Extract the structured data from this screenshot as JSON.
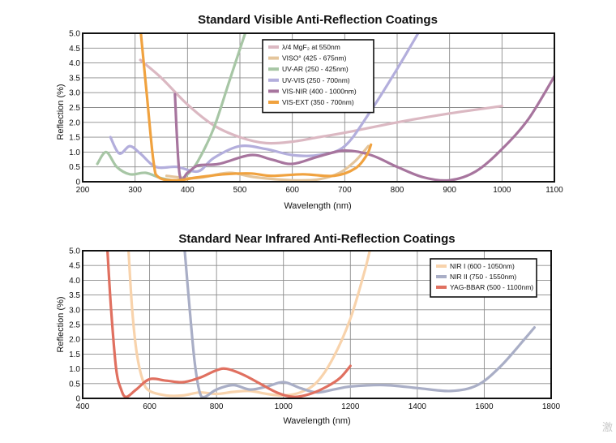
{
  "watermark": "激",
  "chart_data": [
    {
      "type": "line",
      "title": "Standard Visible Anti-Reflection Coatings",
      "xlabel": "Wavelength (nm)",
      "ylabel": "Reflection (%)",
      "xlim": [
        200,
        1100
      ],
      "ylim": [
        0,
        5.0
      ],
      "xticks": [
        200,
        300,
        400,
        500,
        600,
        700,
        800,
        900,
        1000,
        1100
      ],
      "yticks": [
        "0",
        "0.5",
        "1.0",
        "1.5",
        "2.0",
        "2.5",
        "3.0",
        "3.5",
        "4.0",
        "4.5",
        "5.0"
      ],
      "grid": true,
      "legend_position": "top-center",
      "series": [
        {
          "name": "λ/4 MgF₂ at 550nm",
          "color": "#dbb8c2",
          "points": [
            [
              310,
              4.1
            ],
            [
              350,
              3.5
            ],
            [
              400,
              2.6
            ],
            [
              450,
              1.9
            ],
            [
              500,
              1.5
            ],
            [
              550,
              1.3
            ],
            [
              600,
              1.35
            ],
            [
              650,
              1.5
            ],
            [
              700,
              1.65
            ],
            [
              800,
              2.0
            ],
            [
              900,
              2.3
            ],
            [
              1000,
              2.55
            ]
          ]
        },
        {
          "name": "VISO° (425 - 675nm)",
          "color": "#e4c59b",
          "points": [
            [
              360,
              0.2
            ],
            [
              400,
              0.12
            ],
            [
              430,
              0.15
            ],
            [
              480,
              0.3
            ],
            [
              530,
              0.15
            ],
            [
              600,
              0.05
            ],
            [
              650,
              0.08
            ],
            [
              690,
              0.3
            ],
            [
              720,
              0.7
            ],
            [
              745,
              1.2
            ]
          ]
        },
        {
          "name": "UV-AR (250 - 425nm)",
          "color": "#a7c6a5",
          "points": [
            [
              228,
              0.6
            ],
            [
              245,
              1.0
            ],
            [
              265,
              0.5
            ],
            [
              290,
              0.25
            ],
            [
              320,
              0.3
            ],
            [
              350,
              0.12
            ],
            [
              380,
              0.05
            ],
            [
              400,
              0.25
            ],
            [
              420,
              0.7
            ],
            [
              450,
              1.8
            ],
            [
              480,
              3.4
            ],
            [
              510,
              5.0
            ]
          ]
        },
        {
          "name": "UV-VIS (250 - 700nm)",
          "color": "#b3aedc",
          "points": [
            [
              253,
              1.5
            ],
            [
              270,
              0.95
            ],
            [
              290,
              1.2
            ],
            [
              310,
              0.95
            ],
            [
              340,
              0.5
            ],
            [
              380,
              0.5
            ],
            [
              420,
              0.35
            ],
            [
              450,
              0.8
            ],
            [
              500,
              1.2
            ],
            [
              550,
              1.1
            ],
            [
              600,
              0.9
            ],
            [
              650,
              0.9
            ],
            [
              700,
              1.2
            ],
            [
              750,
              2.4
            ],
            [
              800,
              3.8
            ],
            [
              840,
              5.0
            ]
          ]
        },
        {
          "name": "VIS-NIR (400 - 1000nm)",
          "color": "#a7759e",
          "points": [
            [
              376,
              2.95
            ],
            [
              385,
              0.25
            ],
            [
              400,
              0.3
            ],
            [
              420,
              0.55
            ],
            [
              460,
              0.6
            ],
            [
              520,
              0.9
            ],
            [
              560,
              0.75
            ],
            [
              600,
              0.6
            ],
            [
              650,
              0.85
            ],
            [
              700,
              1.05
            ],
            [
              750,
              0.9
            ],
            [
              800,
              0.5
            ],
            [
              850,
              0.15
            ],
            [
              900,
              0.05
            ],
            [
              950,
              0.35
            ],
            [
              1000,
              1.1
            ],
            [
              1050,
              2.1
            ],
            [
              1100,
              3.55
            ]
          ]
        },
        {
          "name": "VIS-EXT (350 - 700nm)",
          "color": "#f0a23f",
          "points": [
            [
              311,
              5.0
            ],
            [
              322,
              3.0
            ],
            [
              335,
              0.7
            ],
            [
              345,
              0.15
            ],
            [
              380,
              0.05
            ],
            [
              420,
              0.15
            ],
            [
              470,
              0.25
            ],
            [
              520,
              0.28
            ],
            [
              560,
              0.2
            ],
            [
              620,
              0.25
            ],
            [
              680,
              0.2
            ],
            [
              720,
              0.45
            ],
            [
              742,
              0.9
            ],
            [
              750,
              1.25
            ]
          ]
        }
      ]
    },
    {
      "type": "line",
      "title": "Standard Near Infrared Anti-Reflection Coatings",
      "xlabel": "Wavelength (nm)",
      "ylabel": "Reflection (%)",
      "xlim": [
        400,
        1800
      ],
      "ylim": [
        0,
        5.0
      ],
      "xticks": [
        400,
        600,
        800,
        1000,
        1200,
        1400,
        1600,
        1800
      ],
      "yticks": [
        "0",
        "0.5",
        "1.0",
        "1.5",
        "2.0",
        "2.5",
        "3.0",
        "3.5",
        "4.0",
        "4.5",
        "5.0"
      ],
      "grid": true,
      "legend_position": "top-right",
      "series": [
        {
          "name": "NIR I (600 - 1050nm)",
          "color": "#f8d3ac",
          "points": [
            [
              537,
              5.0
            ],
            [
              548,
              3.0
            ],
            [
              562,
              1.5
            ],
            [
              580,
              0.6
            ],
            [
              600,
              0.25
            ],
            [
              650,
              0.1
            ],
            [
              700,
              0.1
            ],
            [
              750,
              0.2
            ],
            [
              800,
              0.15
            ],
            [
              850,
              0.22
            ],
            [
              900,
              0.25
            ],
            [
              950,
              0.15
            ],
            [
              1000,
              0.1
            ],
            [
              1050,
              0.2
            ],
            [
              1100,
              0.55
            ],
            [
              1150,
              1.4
            ],
            [
              1200,
              2.7
            ],
            [
              1240,
              4.2
            ],
            [
              1258,
              5.0
            ]
          ]
        },
        {
          "name": "NIR II (750 - 1550nm)",
          "color": "#a9aec6",
          "points": [
            [
              705,
              5.0
            ],
            [
              720,
              3.0
            ],
            [
              735,
              1.2
            ],
            [
              750,
              0.2
            ],
            [
              765,
              0.05
            ],
            [
              800,
              0.3
            ],
            [
              850,
              0.45
            ],
            [
              900,
              0.3
            ],
            [
              950,
              0.4
            ],
            [
              1000,
              0.55
            ],
            [
              1050,
              0.35
            ],
            [
              1100,
              0.2
            ],
            [
              1150,
              0.3
            ],
            [
              1200,
              0.4
            ],
            [
              1300,
              0.45
            ],
            [
              1400,
              0.35
            ],
            [
              1500,
              0.25
            ],
            [
              1580,
              0.45
            ],
            [
              1650,
              1.1
            ],
            [
              1720,
              2.0
            ],
            [
              1750,
              2.4
            ]
          ]
        },
        {
          "name": "YAG-BBAR (500 - 1100nm)",
          "color": "#e07060",
          "points": [
            [
              474,
              5.0
            ],
            [
              485,
              3.0
            ],
            [
              500,
              1.0
            ],
            [
              515,
              0.3
            ],
            [
              530,
              0.05
            ],
            [
              560,
              0.3
            ],
            [
              600,
              0.65
            ],
            [
              650,
              0.6
            ],
            [
              700,
              0.55
            ],
            [
              750,
              0.7
            ],
            [
              800,
              0.95
            ],
            [
              830,
              1.0
            ],
            [
              880,
              0.8
            ],
            [
              930,
              0.5
            ],
            [
              980,
              0.2
            ],
            [
              1030,
              0.05
            ],
            [
              1080,
              0.15
            ],
            [
              1130,
              0.4
            ],
            [
              1170,
              0.7
            ],
            [
              1200,
              1.1
            ]
          ]
        }
      ]
    }
  ]
}
